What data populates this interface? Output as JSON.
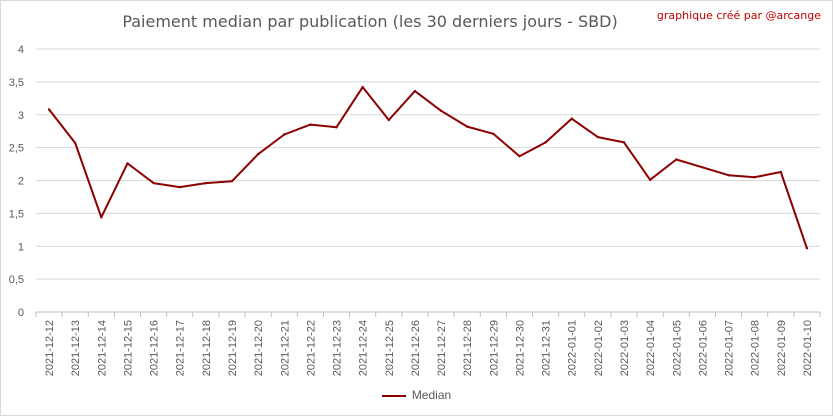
{
  "title": "Paiement median par publication (les 30 derniers jours - SBD)",
  "credit": "graphique créé par @arcange",
  "chart_data": {
    "type": "line",
    "x": [
      "2021-12-12",
      "2021-12-13",
      "2021-12-14",
      "2021-12-15",
      "2021-12-16",
      "2021-12-17",
      "2021-12-18",
      "2021-12-19",
      "2021-12-20",
      "2021-12-21",
      "2021-12-22",
      "2021-12-23",
      "2021-12-24",
      "2021-12-25",
      "2021-12-26",
      "2021-12-27",
      "2021-12-28",
      "2021-12-29",
      "2021-12-30",
      "2021-12-31",
      "2022-01-01",
      "2022-01-02",
      "2022-01-03",
      "2022-01-04",
      "2022-01-05",
      "2022-01-06",
      "2022-01-07",
      "2022-01-08",
      "2022-01-09",
      "2022-01-10"
    ],
    "series": [
      {
        "name": "Median",
        "color": "#8b0000",
        "values": [
          3.08,
          2.57,
          1.44,
          2.26,
          1.96,
          1.9,
          1.96,
          1.99,
          2.4,
          2.7,
          2.85,
          2.81,
          3.42,
          2.92,
          3.36,
          3.06,
          2.82,
          2.71,
          2.37,
          2.58,
          2.94,
          2.66,
          2.58,
          2.01,
          2.32,
          2.2,
          2.08,
          2.05,
          2.13,
          0.97
        ]
      }
    ],
    "yticks": [
      "0",
      "0,5",
      "1",
      "1,5",
      "2",
      "2,5",
      "3",
      "3,5",
      "4"
    ],
    "ylim": [
      0,
      4
    ],
    "grid": true,
    "legend_position": "bottom"
  }
}
